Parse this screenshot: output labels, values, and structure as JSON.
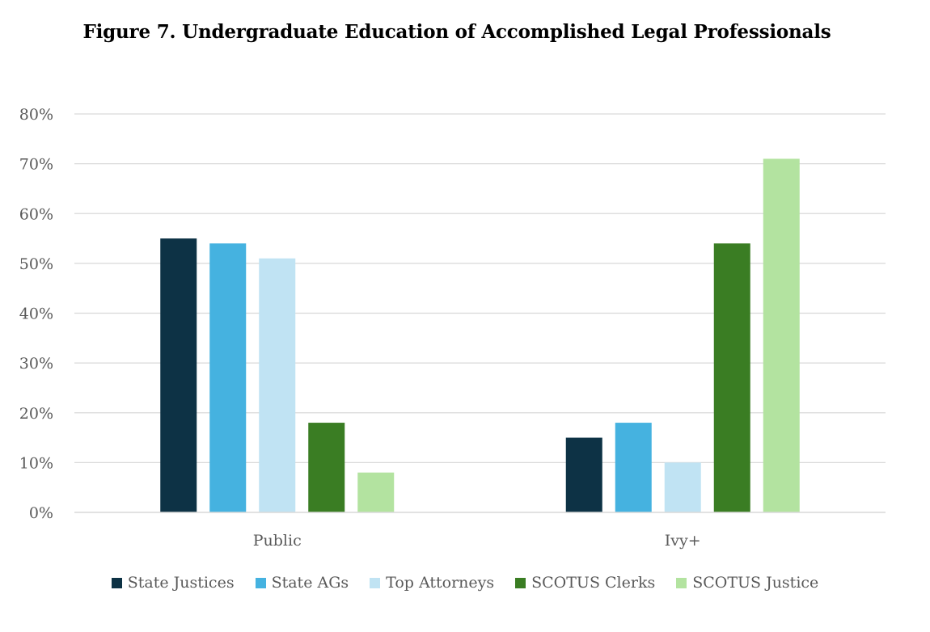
{
  "title": "Figure 7. Undergraduate Education of Accomplished Legal Professionals",
  "chart_data": {
    "type": "bar",
    "title": "Figure 7. Undergraduate Education of Accomplished Legal Professionals",
    "xlabel": "",
    "ylabel": "",
    "categories": [
      "Public",
      "Ivy+"
    ],
    "series": [
      {
        "name": "State Justices",
        "color": "#0d3245",
        "values": [
          55,
          15
        ]
      },
      {
        "name": "State AGs",
        "color": "#45b2e0",
        "values": [
          54,
          18
        ]
      },
      {
        "name": "Top Attorneys",
        "color": "#c0e3f3",
        "values": [
          51,
          10
        ]
      },
      {
        "name": "SCOTUS Clerks",
        "color": "#3a7d23",
        "values": [
          18,
          54
        ]
      },
      {
        "name": "SCOTUS Justice",
        "color": "#b3e3a0",
        "values": [
          8,
          71
        ]
      }
    ],
    "ylim": [
      0,
      80
    ],
    "yticks": [
      0,
      10,
      20,
      30,
      40,
      50,
      60,
      70,
      80
    ],
    "ytick_labels": [
      "0%",
      "10%",
      "20%",
      "30%",
      "40%",
      "50%",
      "60%",
      "70%",
      "80%"
    ],
    "grid": true,
    "legend_position": "bottom"
  }
}
